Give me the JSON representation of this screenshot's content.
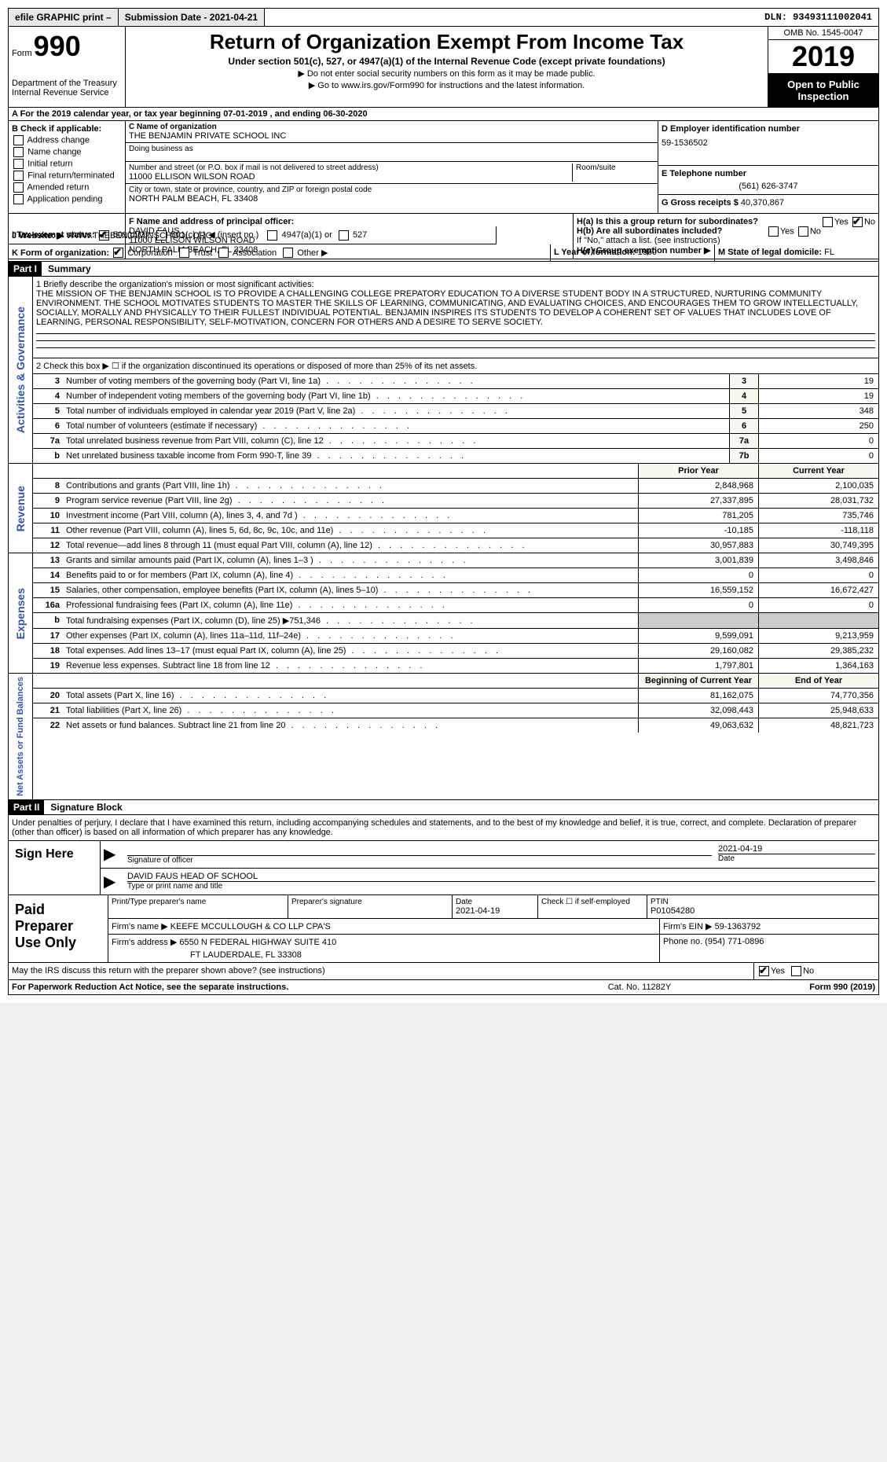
{
  "topbar": {
    "efile": "efile GRAPHIC print –",
    "submission": "Submission Date - 2021-04-21",
    "dln": "DLN: 93493111002041"
  },
  "header": {
    "form_word": "Form",
    "form_num": "990",
    "dept": "Department of the Treasury\nInternal Revenue Service",
    "title": "Return of Organization Exempt From Income Tax",
    "subtitle": "Under section 501(c), 527, or 4947(a)(1) of the Internal Revenue Code (except private foundations)",
    "note1": "▶ Do not enter social security numbers on this form as it may be made public.",
    "note2": "▶ Go to www.irs.gov/Form990 for instructions and the latest information.",
    "omb": "OMB No. 1545-0047",
    "year": "2019",
    "open": "Open to Public Inspection"
  },
  "rowA": "A  For the 2019 calendar year, or tax year beginning 07-01-2019    , and ending 06-30-2020",
  "sectionB": {
    "b_label": "B Check if applicable:",
    "b_items": [
      "Address change",
      "Name change",
      "Initial return",
      "Final return/terminated",
      "Amended return",
      "Application pending"
    ],
    "c_label": "C Name of organization",
    "c_name": "THE BENJAMIN PRIVATE SCHOOL INC",
    "dba_label": "Doing business as",
    "dba": "",
    "street_label": "Number and street (or P.O. box if mail is not delivered to street address)",
    "street": "11000 ELLISON WILSON ROAD",
    "room_label": "Room/suite",
    "city_label": "City or town, state or province, country, and ZIP or foreign postal code",
    "city": "NORTH PALM BEACH, FL  33408",
    "d_label": "D Employer identification number",
    "d_val": "59-1536502",
    "e_label": "E Telephone number",
    "e_val": "(561) 626-3747",
    "g_label": "G Gross receipts $",
    "g_val": "40,370,867"
  },
  "sectionF": {
    "f_label": "F Name and address of principal officer:",
    "f_name": "DAVID FAUS",
    "f_addr1": "11000 ELLISON WILSON ROAD",
    "f_addr2": "NORTH PALM BEACH, FL  33408",
    "ha_label": "H(a)  Is this a group return for subordinates?",
    "hb_label": "H(b)  Are all subordinates included?",
    "hb_note": "If \"No,\" attach a list. (see instructions)",
    "hc_label": "H(c)  Group exemption number ▶"
  },
  "rowI": {
    "label": "I   Tax-exempt status:",
    "opt1": "501(c)(3)",
    "opt2": "501(c) (  ) ◀ (insert no.)",
    "opt3": "4947(a)(1) or",
    "opt4": "527"
  },
  "rowJ": {
    "label": "J   Website: ▶",
    "val": "WWW.THEBENJAMINSCHOOL.ORG"
  },
  "rowK": {
    "label": "K Form of organization:",
    "opts": [
      "Corporation",
      "Trust",
      "Association",
      "Other ▶"
    ],
    "l_label": "L Year of formation:",
    "l_val": "1960",
    "m_label": "M State of legal domicile:",
    "m_val": "FL"
  },
  "part1": {
    "header": "Part I",
    "title": "Summary"
  },
  "mission": {
    "label": "1   Briefly describe the organization's mission or most significant activities:",
    "text": "THE MISSION OF THE BENJAMIN SCHOOL IS TO PROVIDE A CHALLENGING COLLEGE PREPATORY EDUCATION TO A DIVERSE STUDENT BODY IN A STRUCTURED, NURTURING COMMUNITY ENVIRONMENT. THE SCHOOL MOTIVATES STUDENTS TO MASTER THE SKILLS OF LEARNING, COMMUNICATING, AND EVALUATING CHOICES, AND ENCOURAGES THEM TO GROW INTELLECTUALLY, SOCIALLY, MORALLY AND PHYSICALLY TO THEIR FULLEST INDIVIDUAL POTENTIAL. BENJAMIN INSPIRES ITS STUDENTS TO DEVELOP A COHERENT SET OF VALUES THAT INCLUDES LOVE OF LEARNING, PERSONAL RESPONSIBILITY, SELF-MOTIVATION, CONCERN FOR OTHERS AND A DESIRE TO SERVE SOCIETY."
  },
  "line2": "2   Check this box ▶ ☐  if the organization discontinued its operations or disposed of more than 25% of its net assets.",
  "governance_lines": [
    {
      "n": "3",
      "desc": "Number of voting members of the governing body (Part VI, line 1a)",
      "box": "3",
      "val": "19"
    },
    {
      "n": "4",
      "desc": "Number of independent voting members of the governing body (Part VI, line 1b)",
      "box": "4",
      "val": "19"
    },
    {
      "n": "5",
      "desc": "Total number of individuals employed in calendar year 2019 (Part V, line 2a)",
      "box": "5",
      "val": "348"
    },
    {
      "n": "6",
      "desc": "Total number of volunteers (estimate if necessary)",
      "box": "6",
      "val": "250"
    },
    {
      "n": "7a",
      "desc": "Total unrelated business revenue from Part VIII, column (C), line 12",
      "box": "7a",
      "val": "0"
    },
    {
      "n": "b",
      "desc": "Net unrelated business taxable income from Form 990-T, line 39",
      "box": "7b",
      "val": "0"
    }
  ],
  "rev_header": {
    "prior": "Prior Year",
    "current": "Current Year"
  },
  "revenue_lines": [
    {
      "n": "8",
      "desc": "Contributions and grants (Part VIII, line 1h)",
      "p": "2,848,968",
      "c": "2,100,035"
    },
    {
      "n": "9",
      "desc": "Program service revenue (Part VIII, line 2g)",
      "p": "27,337,895",
      "c": "28,031,732"
    },
    {
      "n": "10",
      "desc": "Investment income (Part VIII, column (A), lines 3, 4, and 7d )",
      "p": "781,205",
      "c": "735,746"
    },
    {
      "n": "11",
      "desc": "Other revenue (Part VIII, column (A), lines 5, 6d, 8c, 9c, 10c, and 11e)",
      "p": "-10,185",
      "c": "-118,118"
    },
    {
      "n": "12",
      "desc": "Total revenue—add lines 8 through 11 (must equal Part VIII, column (A), line 12)",
      "p": "30,957,883",
      "c": "30,749,395"
    }
  ],
  "expense_lines": [
    {
      "n": "13",
      "desc": "Grants and similar amounts paid (Part IX, column (A), lines 1–3 )",
      "p": "3,001,839",
      "c": "3,498,846"
    },
    {
      "n": "14",
      "desc": "Benefits paid to or for members (Part IX, column (A), line 4)",
      "p": "0",
      "c": "0"
    },
    {
      "n": "15",
      "desc": "Salaries, other compensation, employee benefits (Part IX, column (A), lines 5–10)",
      "p": "16,559,152",
      "c": "16,672,427"
    },
    {
      "n": "16a",
      "desc": "Professional fundraising fees (Part IX, column (A), line 11e)",
      "p": "0",
      "c": "0"
    },
    {
      "n": "b",
      "desc": "Total fundraising expenses (Part IX, column (D), line 25) ▶751,346",
      "p": "",
      "c": "",
      "shade": true
    },
    {
      "n": "17",
      "desc": "Other expenses (Part IX, column (A), lines 11a–11d, 11f–24e)",
      "p": "9,599,091",
      "c": "9,213,959"
    },
    {
      "n": "18",
      "desc": "Total expenses. Add lines 13–17 (must equal Part IX, column (A), line 25)",
      "p": "29,160,082",
      "c": "29,385,232"
    },
    {
      "n": "19",
      "desc": "Revenue less expenses. Subtract line 18 from line 12",
      "p": "1,797,801",
      "c": "1,364,163"
    }
  ],
  "na_header": {
    "begin": "Beginning of Current Year",
    "end": "End of Year"
  },
  "na_lines": [
    {
      "n": "20",
      "desc": "Total assets (Part X, line 16)",
      "p": "81,162,075",
      "c": "74,770,356"
    },
    {
      "n": "21",
      "desc": "Total liabilities (Part X, line 26)",
      "p": "32,098,443",
      "c": "25,948,633"
    },
    {
      "n": "22",
      "desc": "Net assets or fund balances. Subtract line 21 from line 20",
      "p": "49,063,632",
      "c": "48,821,723"
    }
  ],
  "part2": {
    "header": "Part II",
    "title": "Signature Block"
  },
  "perjury": "Under penalties of perjury, I declare that I have examined this return, including accompanying schedules and statements, and to the best of my knowledge and belief, it is true, correct, and complete. Declaration of preparer (other than officer) is based on all information of which preparer has any knowledge.",
  "sign": {
    "label": "Sign Here",
    "sig_label": "Signature of officer",
    "date": "2021-04-19",
    "date_label": "Date",
    "name": "DAVID FAUS HEAD OF SCHOOL",
    "name_label": "Type or print name and title"
  },
  "paid": {
    "label": "Paid Preparer Use Only",
    "h1": "Print/Type preparer's name",
    "h2": "Preparer's signature",
    "h3": "Date",
    "h3_val": "2021-04-19",
    "h4": "Check ☐ if self-employed",
    "h5": "PTIN",
    "h5_val": "P01054280",
    "firm_label": "Firm's name    ▶",
    "firm": "KEEFE MCCULLOUGH & CO LLP CPA'S",
    "ein_label": "Firm's EIN ▶",
    "ein": "59-1363792",
    "addr_label": "Firm's address ▶",
    "addr1": "6550 N FEDERAL HIGHWAY SUITE 410",
    "addr2": "FT LAUDERDALE, FL  33308",
    "phone_label": "Phone no.",
    "phone": "(954) 771-0896"
  },
  "discuss": "May the IRS discuss this return with the preparer shown above? (see instructions)",
  "footer": {
    "left": "For Paperwork Reduction Act Notice, see the separate instructions.",
    "center": "Cat. No. 11282Y",
    "right": "Form 990 (2019)"
  },
  "vlabels": {
    "gov": "Activities & Governance",
    "rev": "Revenue",
    "exp": "Expenses",
    "na": "Net Assets or Fund Balances"
  }
}
